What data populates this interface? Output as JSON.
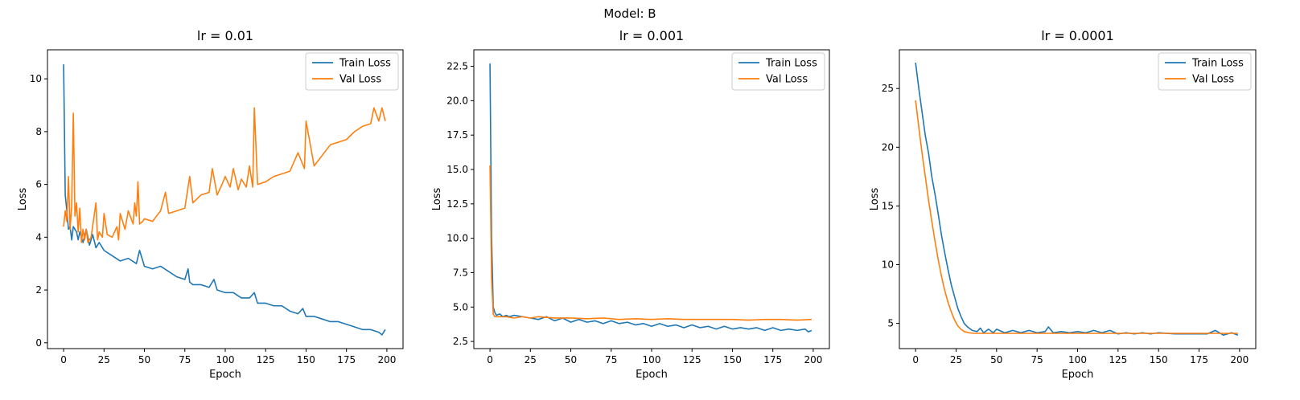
{
  "figure": {
    "suptitle": "Model: B",
    "colors": {
      "train": "#1f77b4",
      "val": "#ff7f0e",
      "axes": "#000000",
      "legend_border": "#cccccc"
    }
  },
  "chart_data": [
    {
      "type": "line",
      "title": "lr = 0.01",
      "xlabel": "Epoch",
      "ylabel": "Loss",
      "xlim": [
        -10,
        210
      ],
      "ylim": [
        -0.22,
        11.1
      ],
      "xticks": [
        0,
        25,
        50,
        75,
        100,
        125,
        150,
        175,
        200
      ],
      "xtick_labels": [
        "0",
        "25",
        "50",
        "75",
        "100",
        "125",
        "150",
        "175",
        "200"
      ],
      "yticks": [
        0,
        2,
        4,
        6,
        8,
        10
      ],
      "ytick_labels": [
        "0",
        "2",
        "4",
        "6",
        "8",
        "10"
      ],
      "legend": {
        "position": "upper right",
        "entries": [
          "Train Loss",
          "Val Loss"
        ]
      },
      "series": [
        {
          "name": "Train Loss",
          "color": "#1f77b4",
          "x": [
            0,
            1,
            2,
            3,
            4,
            5,
            6,
            7,
            8,
            9,
            10,
            12,
            14,
            16,
            18,
            20,
            22,
            25,
            30,
            35,
            40,
            45,
            47,
            50,
            55,
            60,
            65,
            70,
            75,
            77,
            78,
            80,
            85,
            90,
            93,
            95,
            100,
            105,
            110,
            115,
            118,
            120,
            125,
            130,
            135,
            140,
            145,
            148,
            150,
            155,
            160,
            165,
            170,
            175,
            180,
            185,
            190,
            195,
            197,
            199
          ],
          "values": [
            10.55,
            5.6,
            5.0,
            4.3,
            4.4,
            3.9,
            4.4,
            4.3,
            4.2,
            3.9,
            4.2,
            3.8,
            4.3,
            3.7,
            4.1,
            3.6,
            3.8,
            3.5,
            3.3,
            3.1,
            3.2,
            3.0,
            3.5,
            2.9,
            2.8,
            2.9,
            2.7,
            2.5,
            2.4,
            2.8,
            2.3,
            2.2,
            2.2,
            2.1,
            2.4,
            2.0,
            1.9,
            1.9,
            1.7,
            1.7,
            1.9,
            1.5,
            1.5,
            1.4,
            1.4,
            1.2,
            1.1,
            1.3,
            1.0,
            1.0,
            0.9,
            0.8,
            0.8,
            0.7,
            0.6,
            0.5,
            0.5,
            0.4,
            0.3,
            0.5
          ]
        },
        {
          "name": "Val Loss",
          "color": "#ff7f0e",
          "x": [
            0,
            1,
            2,
            3,
            4,
            5,
            6,
            7,
            8,
            9,
            10,
            11,
            12,
            13,
            14,
            15,
            17,
            20,
            21,
            22,
            24,
            25,
            27,
            30,
            33,
            34,
            35,
            38,
            40,
            43,
            44,
            45,
            46,
            47,
            49,
            50,
            55,
            60,
            63,
            65,
            70,
            75,
            78,
            80,
            85,
            90,
            92,
            95,
            98,
            100,
            103,
            105,
            108,
            110,
            113,
            115,
            117,
            118,
            120,
            125,
            130,
            135,
            140,
            145,
            149,
            150,
            155,
            160,
            165,
            170,
            175,
            180,
            185,
            190,
            192,
            195,
            197,
            199
          ],
          "values": [
            4.4,
            5.0,
            4.6,
            6.3,
            4.3,
            5.2,
            8.7,
            4.8,
            5.3,
            4.2,
            5.1,
            3.8,
            4.3,
            3.9,
            4.3,
            3.8,
            4.0,
            5.3,
            3.9,
            4.2,
            4.0,
            4.9,
            4.1,
            4.0,
            4.4,
            3.9,
            4.9,
            4.3,
            5.0,
            4.5,
            5.3,
            4.8,
            6.1,
            4.5,
            4.6,
            4.7,
            4.6,
            5.0,
            5.7,
            4.9,
            5.0,
            5.1,
            6.3,
            5.3,
            5.6,
            5.7,
            6.6,
            5.6,
            6.0,
            6.3,
            5.9,
            6.6,
            5.8,
            6.2,
            5.9,
            6.7,
            5.9,
            8.9,
            6.0,
            6.1,
            6.3,
            6.4,
            6.5,
            7.2,
            6.6,
            8.4,
            6.7,
            7.1,
            7.5,
            7.6,
            7.7,
            8.0,
            8.2,
            8.3,
            8.9,
            8.4,
            8.9,
            8.4
          ]
        }
      ]
    },
    {
      "type": "line",
      "title": "lr = 0.001",
      "xlabel": "Epoch",
      "ylabel": "Loss",
      "xlim": [
        -10,
        210
      ],
      "ylim": [
        1.98,
        23.7
      ],
      "xticks": [
        0,
        25,
        50,
        75,
        100,
        125,
        150,
        175,
        200
      ],
      "xtick_labels": [
        "0",
        "25",
        "50",
        "75",
        "100",
        "125",
        "150",
        "175",
        "200"
      ],
      "yticks": [
        2.5,
        5.0,
        7.5,
        10.0,
        12.5,
        15.0,
        17.5,
        20.0,
        22.5
      ],
      "ytick_labels": [
        "2.5",
        "5.0",
        "7.5",
        "10.0",
        "12.5",
        "15.0",
        "17.5",
        "20.0",
        "22.5"
      ],
      "legend": {
        "position": "upper right",
        "entries": [
          "Train Loss",
          "Val Loss"
        ]
      },
      "series": [
        {
          "name": "Train Loss",
          "color": "#1f77b4",
          "x": [
            0,
            1,
            2,
            3,
            4,
            6,
            8,
            10,
            12,
            15,
            20,
            25,
            30,
            35,
            40,
            45,
            50,
            55,
            60,
            65,
            70,
            75,
            80,
            85,
            90,
            95,
            100,
            105,
            110,
            115,
            120,
            125,
            130,
            135,
            140,
            145,
            150,
            155,
            160,
            165,
            170,
            175,
            180,
            185,
            190,
            195,
            197,
            199
          ],
          "values": [
            22.7,
            10.0,
            5.0,
            4.6,
            4.4,
            4.5,
            4.3,
            4.4,
            4.3,
            4.4,
            4.3,
            4.2,
            4.1,
            4.3,
            4.0,
            4.2,
            3.9,
            4.1,
            3.9,
            4.0,
            3.8,
            4.0,
            3.8,
            3.9,
            3.7,
            3.8,
            3.6,
            3.8,
            3.6,
            3.7,
            3.5,
            3.7,
            3.5,
            3.6,
            3.4,
            3.6,
            3.4,
            3.5,
            3.4,
            3.5,
            3.3,
            3.5,
            3.3,
            3.4,
            3.3,
            3.4,
            3.2,
            3.3
          ]
        },
        {
          "name": "Val Loss",
          "color": "#ff7f0e",
          "x": [
            0,
            1,
            2,
            3,
            5,
            10,
            15,
            20,
            25,
            30,
            40,
            50,
            60,
            70,
            80,
            90,
            100,
            110,
            120,
            130,
            140,
            150,
            160,
            170,
            180,
            190,
            199
          ],
          "values": [
            15.3,
            7.0,
            4.5,
            4.3,
            4.3,
            4.3,
            4.2,
            4.3,
            4.2,
            4.3,
            4.2,
            4.2,
            4.15,
            4.2,
            4.1,
            4.15,
            4.1,
            4.15,
            4.1,
            4.1,
            4.1,
            4.1,
            4.05,
            4.1,
            4.1,
            4.05,
            4.1
          ]
        }
      ]
    },
    {
      "type": "line",
      "title": "lr = 0.0001",
      "xlabel": "Epoch",
      "ylabel": "Loss",
      "xlim": [
        -10,
        210
      ],
      "ylim": [
        2.85,
        28.3
      ],
      "xticks": [
        0,
        25,
        50,
        75,
        100,
        125,
        150,
        175,
        200
      ],
      "xtick_labels": [
        "0",
        "25",
        "50",
        "75",
        "100",
        "125",
        "150",
        "175",
        "200"
      ],
      "yticks": [
        5,
        10,
        15,
        20,
        25
      ],
      "ytick_labels": [
        "5",
        "10",
        "15",
        "20",
        "25"
      ],
      "legend": {
        "position": "upper right",
        "entries": [
          "Train Loss",
          "Val Loss"
        ]
      },
      "series": [
        {
          "name": "Train Loss",
          "color": "#1f77b4",
          "x": [
            0,
            2,
            4,
            6,
            8,
            10,
            12,
            14,
            16,
            18,
            20,
            22,
            24,
            26,
            28,
            30,
            32,
            35,
            38,
            40,
            42,
            45,
            48,
            50,
            55,
            60,
            65,
            70,
            75,
            80,
            82,
            85,
            90,
            95,
            100,
            105,
            110,
            115,
            120,
            125,
            130,
            135,
            140,
            145,
            150,
            160,
            170,
            180,
            185,
            190,
            195,
            199
          ],
          "values": [
            27.2,
            25.0,
            23.0,
            21.0,
            19.5,
            17.5,
            16.0,
            14.3,
            12.5,
            11.0,
            9.6,
            8.3,
            7.3,
            6.3,
            5.6,
            5.0,
            4.7,
            4.4,
            4.3,
            4.6,
            4.2,
            4.5,
            4.2,
            4.5,
            4.2,
            4.4,
            4.2,
            4.4,
            4.2,
            4.3,
            4.7,
            4.2,
            4.3,
            4.2,
            4.3,
            4.2,
            4.4,
            4.2,
            4.4,
            4.1,
            4.2,
            4.1,
            4.2,
            4.1,
            4.2,
            4.1,
            4.1,
            4.1,
            4.4,
            4.0,
            4.2,
            4.0
          ]
        },
        {
          "name": "Val Loss",
          "color": "#ff7f0e",
          "x": [
            0,
            2,
            4,
            6,
            8,
            10,
            12,
            14,
            16,
            18,
            20,
            22,
            24,
            26,
            28,
            30,
            33,
            36,
            40,
            50,
            60,
            80,
            100,
            120,
            140,
            160,
            180,
            199
          ],
          "values": [
            24.0,
            21.7,
            19.5,
            17.5,
            15.5,
            13.7,
            12.0,
            10.4,
            9.0,
            7.8,
            6.8,
            6.0,
            5.3,
            4.8,
            4.5,
            4.3,
            4.2,
            4.15,
            4.15,
            4.15,
            4.15,
            4.15,
            4.15,
            4.15,
            4.15,
            4.15,
            4.15,
            4.15
          ]
        }
      ]
    }
  ]
}
